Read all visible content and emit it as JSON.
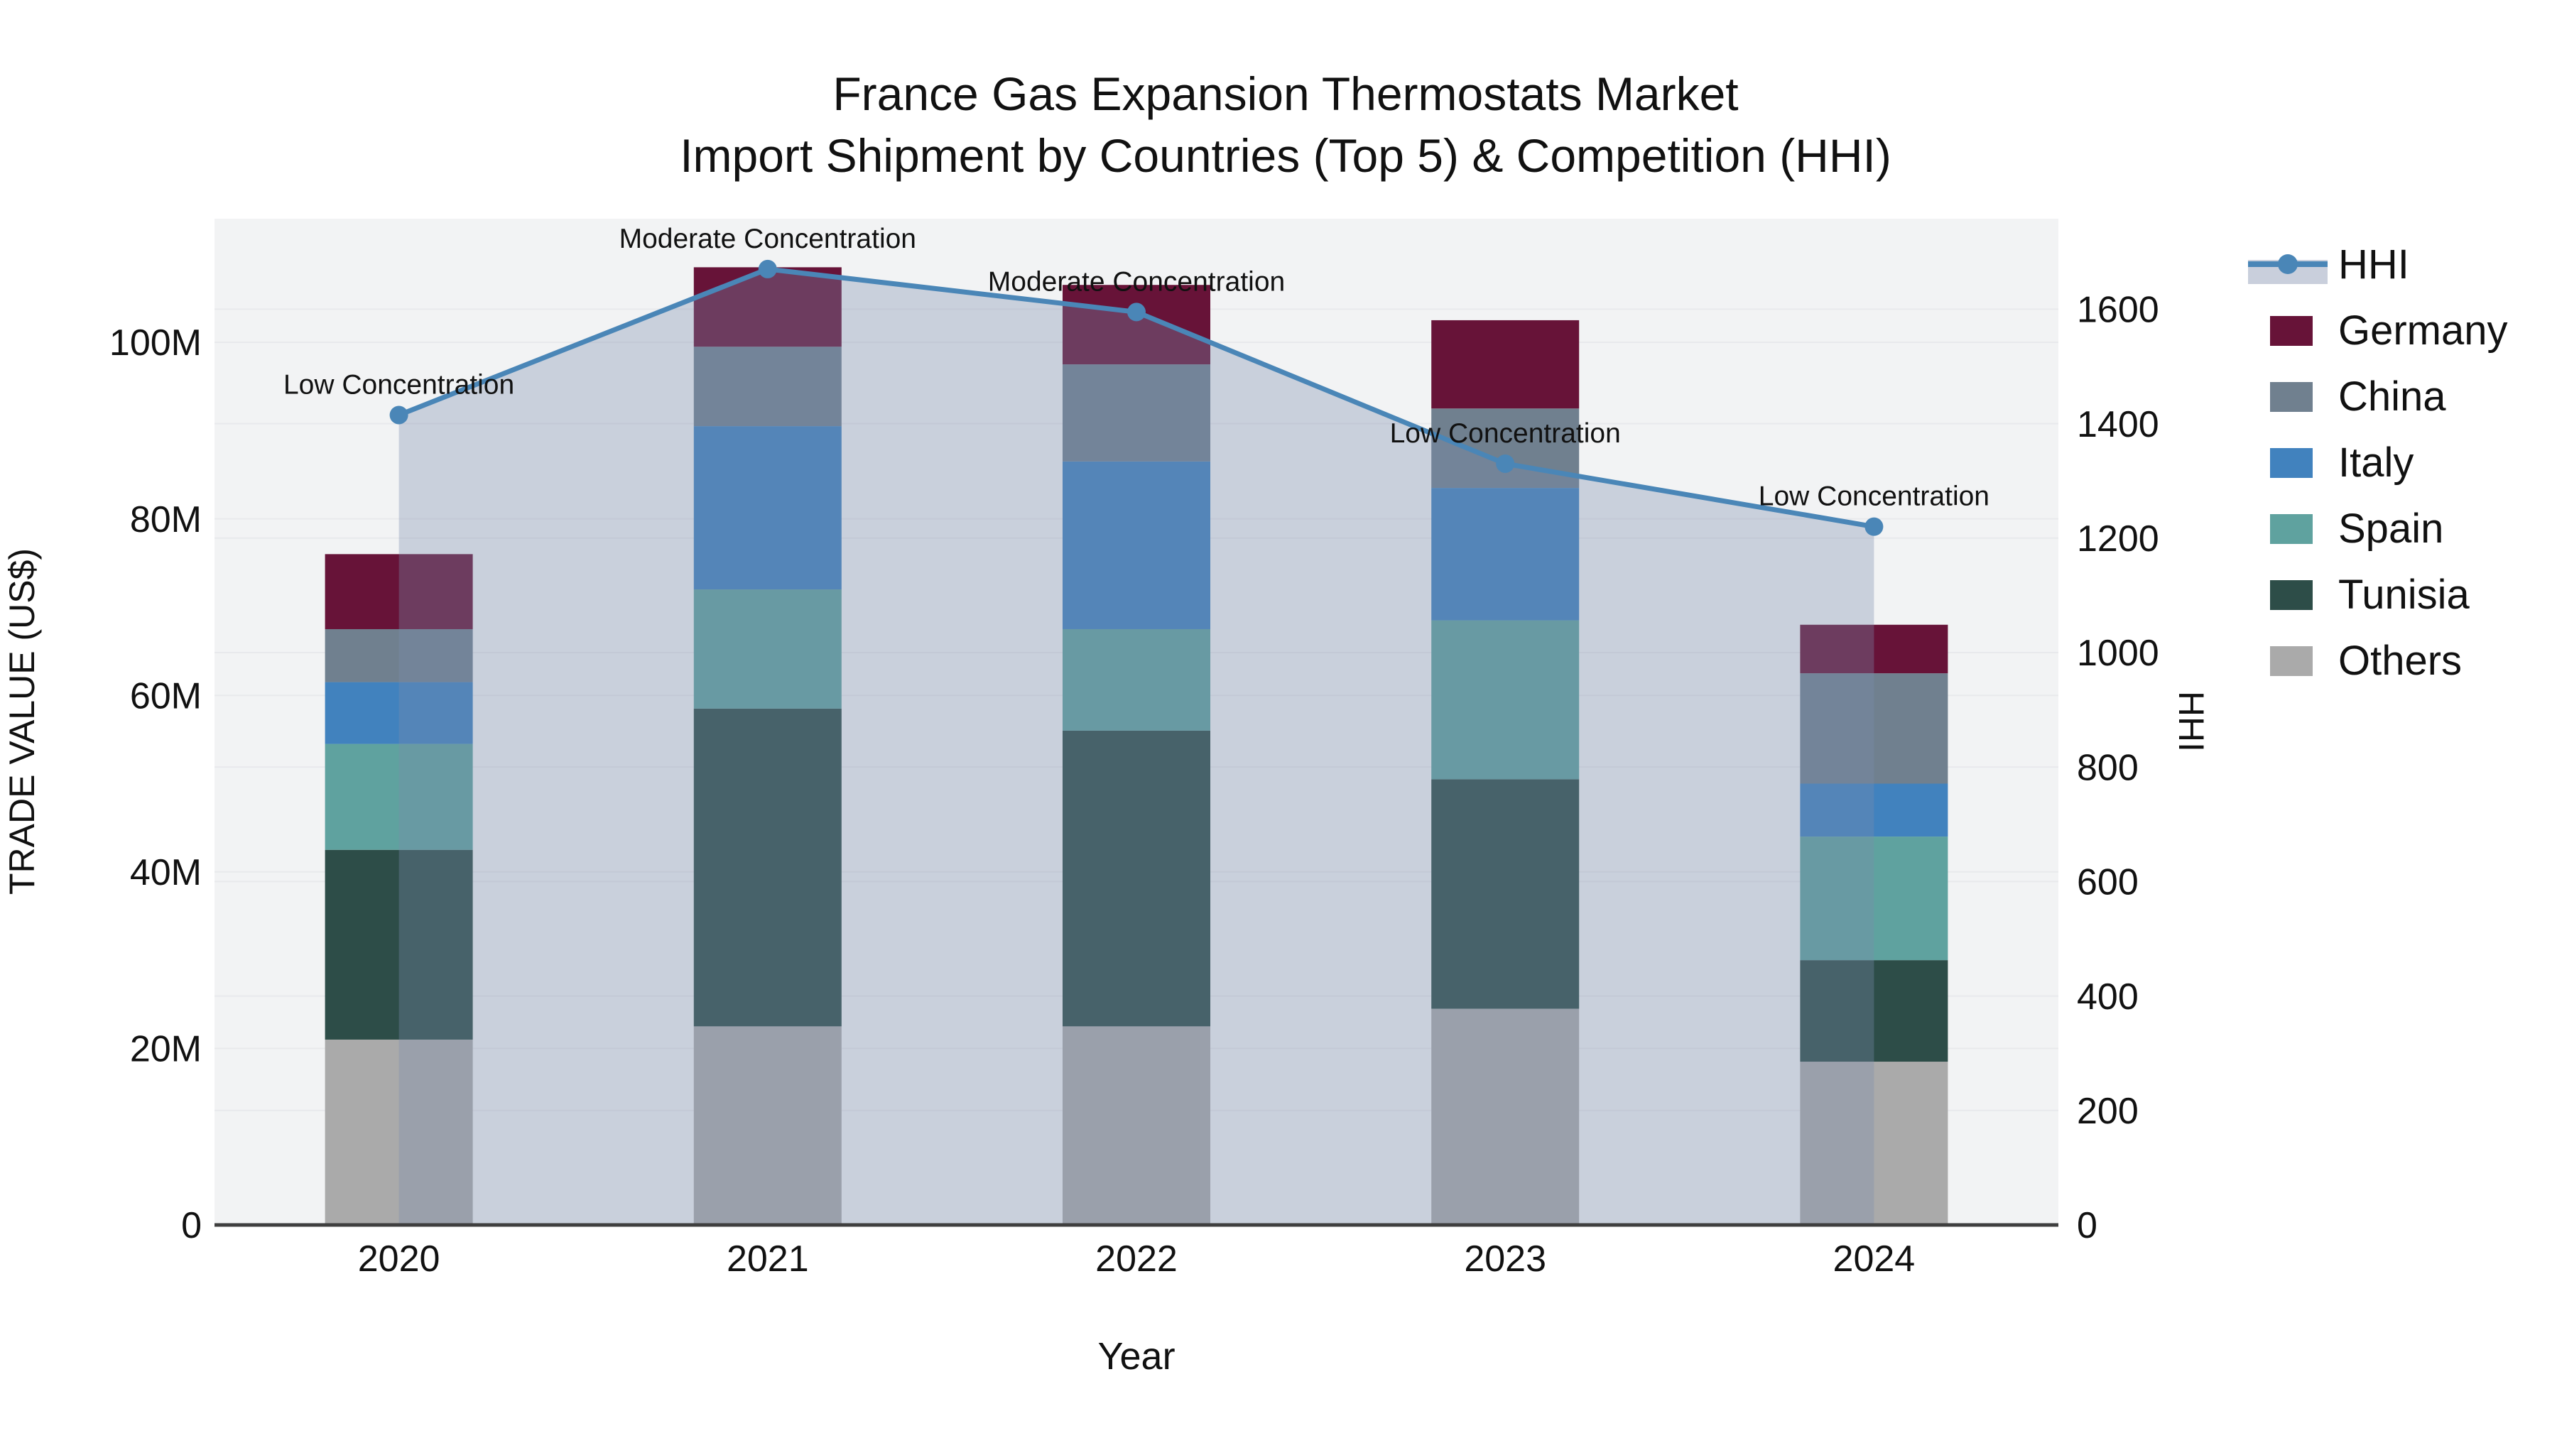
{
  "chart_data": {
    "type": "bar+line",
    "title": {
      "line1": "France Gas Expansion Thermostats Market",
      "line2": "Import Shipment by Countries (Top 5) & Competition (HHI)"
    },
    "categories": [
      "2020",
      "2021",
      "2022",
      "2023",
      "2024"
    ],
    "stack_series": [
      {
        "name": "Others",
        "color": "#AAAAAA",
        "values": [
          21.0,
          22.5,
          22.5,
          24.5,
          18.5
        ]
      },
      {
        "name": "Tunisia",
        "color": "#2D4D48",
        "values": [
          21.5,
          36.0,
          33.5,
          26.0,
          11.5
        ]
      },
      {
        "name": "Spain",
        "color": "#5FA29F",
        "values": [
          12.0,
          13.5,
          11.5,
          18.0,
          14.0
        ]
      },
      {
        "name": "Italy",
        "color": "#4182BE",
        "values": [
          7.0,
          18.5,
          19.0,
          15.0,
          6.0
        ]
      },
      {
        "name": "China",
        "color": "#70808F",
        "values": [
          6.0,
          9.0,
          11.0,
          9.0,
          12.5
        ]
      },
      {
        "name": "Germany",
        "color": "#671338",
        "values": [
          8.5,
          9.0,
          9.0,
          10.0,
          5.5
        ]
      }
    ],
    "line_series": {
      "name": "HHI",
      "color": "#4A86B7",
      "area_fill": "rgba(124,141,174,0.34)",
      "legend_band_color": "#C9CFDC",
      "values": [
        1415,
        1670,
        1595,
        1330,
        1220
      ]
    },
    "annotations": [
      "Low Concentration",
      "Moderate Concentration",
      "Moderate Concentration",
      "Low Concentration",
      "Low Concentration"
    ],
    "left_axis": {
      "title": "TRADE VALUE (US$)",
      "tick_values": [
        0,
        20,
        40,
        60,
        80,
        100
      ],
      "tick_labels": [
        "0",
        "20M",
        "40M",
        "60M",
        "80M",
        "100M"
      ],
      "range": [
        0,
        114
      ]
    },
    "right_axis": {
      "title": "HHI",
      "tick_values": [
        0,
        200,
        400,
        600,
        800,
        1000,
        1200,
        1400,
        1600
      ],
      "tick_labels": [
        "0",
        "200",
        "400",
        "600",
        "800",
        "1000",
        "1200",
        "1400",
        "1600"
      ],
      "range": [
        0,
        1758
      ]
    },
    "x_axis": {
      "title": "Year"
    },
    "legend": [
      "HHI",
      "Germany",
      "China",
      "Italy",
      "Spain",
      "Tunisia",
      "Others"
    ],
    "colors": {
      "background": "#FFFFFF",
      "plot_background": "#F2F3F4",
      "gridline": "#E8E9EC",
      "axis_line": "#3F3F3F",
      "text": "#111111"
    }
  }
}
